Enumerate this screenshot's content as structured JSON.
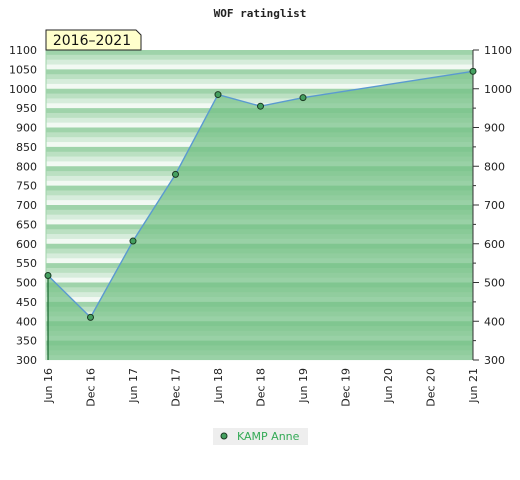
{
  "colors": {
    "area": "#74c084",
    "line": "#5a9ad0",
    "marker": "#45a060",
    "band_dark": "#9fd3aa",
    "band_light": "#f2f9f3",
    "range_box": "#ffffcc",
    "legend_bg": "#eeeeee",
    "legend_text": "#33aa55"
  },
  "chart_data": {
    "type": "area",
    "title": "WOF ratinglist",
    "range_label": "2016–2021",
    "x": [
      "Jun 16",
      "Dec 16",
      "Jun 17",
      "Dec 17",
      "Jun 18",
      "Dec 18",
      "Jun 19",
      "Jun 21"
    ],
    "x_ticks": [
      "Jun 16",
      "Dec 16",
      "Jun 17",
      "Dec 17",
      "Jun 18",
      "Dec 18",
      "Jun 19",
      "Dec 19",
      "Jun 20",
      "Dec 20",
      "Jun 21"
    ],
    "y_left_ticks": [
      300,
      350,
      400,
      450,
      500,
      550,
      600,
      650,
      700,
      750,
      800,
      850,
      900,
      950,
      1000,
      1050,
      1100
    ],
    "y_right_ticks": [
      300,
      400,
      500,
      600,
      700,
      800,
      900,
      1000,
      1100
    ],
    "ylim": [
      300,
      1100
    ],
    "series": [
      {
        "name": "KAMP Anne",
        "values": [
          518,
          410,
          607,
          779,
          985,
          955,
          977,
          1045
        ]
      }
    ],
    "legend": "bottom-center",
    "grid": "horizontal bands"
  }
}
